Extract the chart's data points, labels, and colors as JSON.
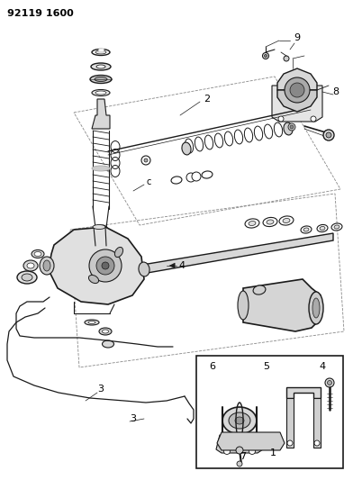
{
  "title_code": "92119 1600",
  "bg_color": "#ffffff",
  "line_color": "#1a1a1a",
  "gray_light": "#cccccc",
  "gray_med": "#999999",
  "gray_dark": "#666666",
  "figsize": [
    3.92,
    5.33
  ],
  "dpi": 100
}
